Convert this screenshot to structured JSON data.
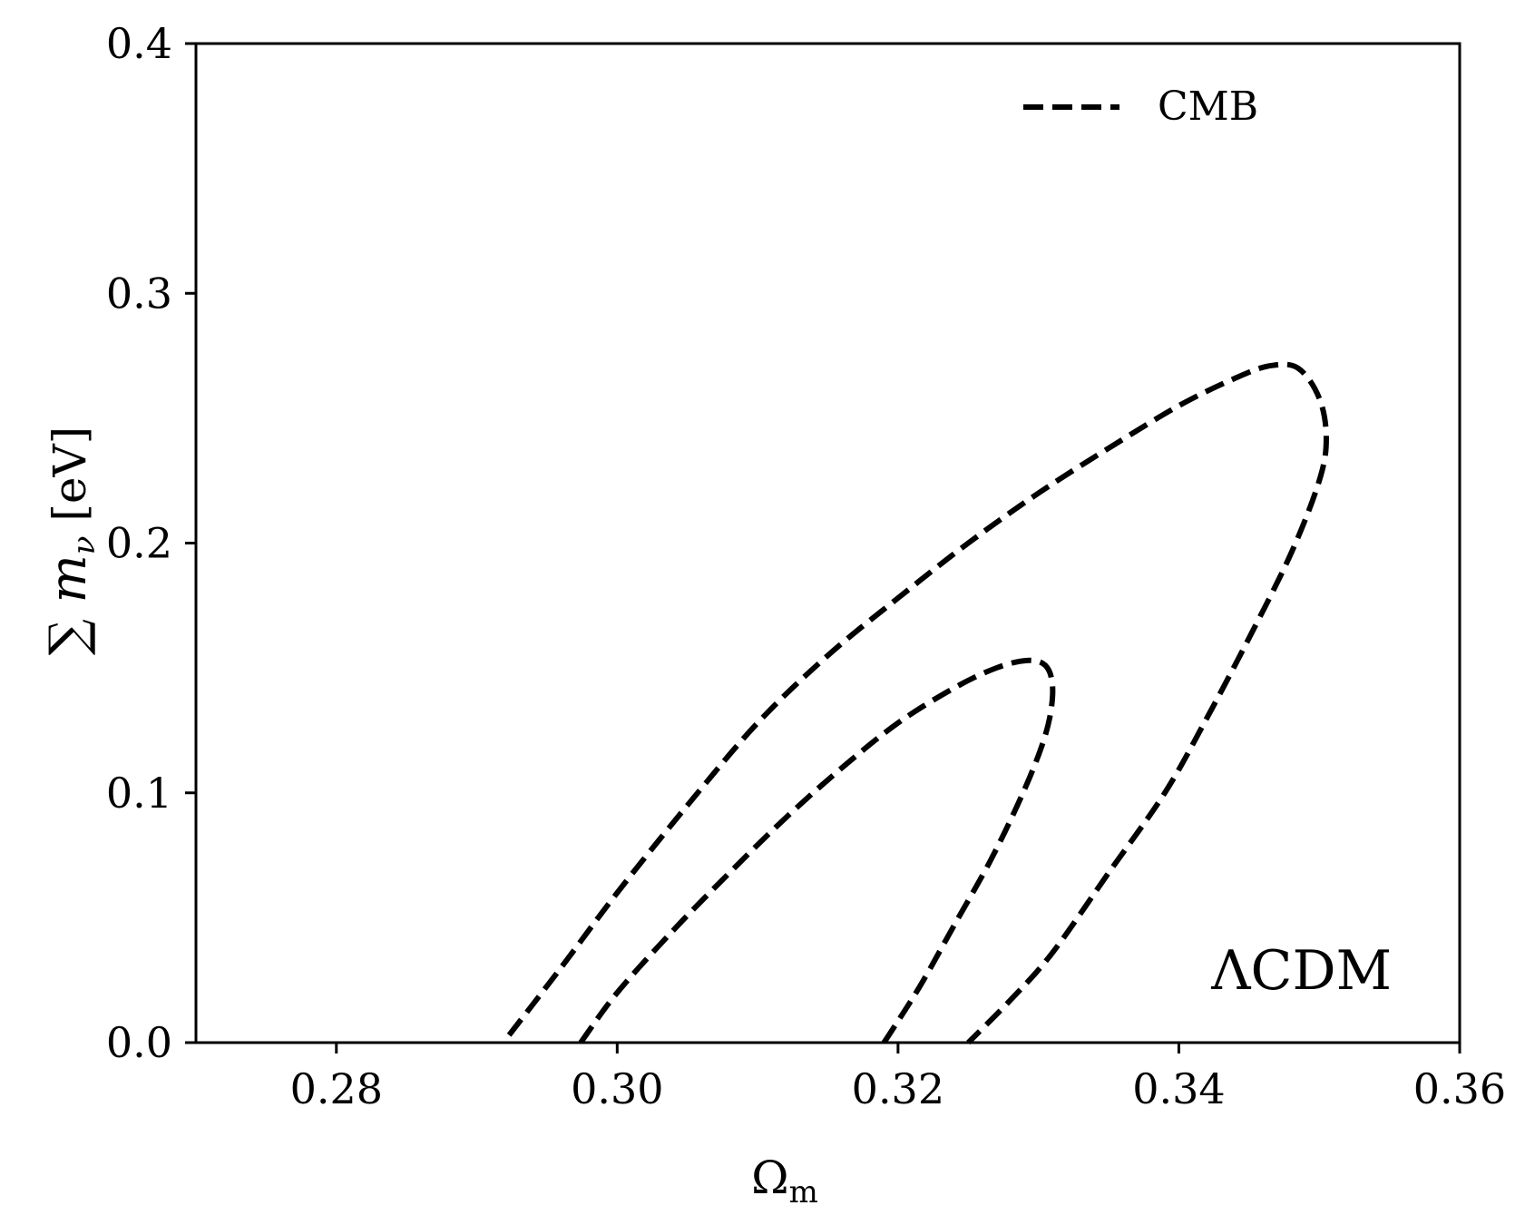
{
  "chart_data": {
    "type": "line",
    "title": "",
    "xlabel": "Ω",
    "xlabel_sub": "m",
    "ylabel": "∑ m",
    "ylabel_sub": "ν",
    "ylabel_unit": "[eV]",
    "xlim": [
      0.27,
      0.36
    ],
    "ylim": [
      0.0,
      0.4
    ],
    "xticks": [
      0.28,
      0.3,
      0.32,
      0.34,
      0.36
    ],
    "xtick_labels": [
      "0.28",
      "0.30",
      "0.32",
      "0.34",
      "0.36"
    ],
    "yticks": [
      0.0,
      0.1,
      0.2,
      0.3,
      0.4
    ],
    "ytick_labels": [
      "0.0",
      "0.1",
      "0.2",
      "0.3",
      "0.4"
    ],
    "grid": false,
    "legend": {
      "placement": "top-right",
      "entries": [
        {
          "label": "CMB",
          "style": "dashed",
          "color": "#000000"
        }
      ]
    },
    "annotation": "ΛCDM",
    "series": [
      {
        "name": "CMB",
        "style": "dashed",
        "color": "#000000",
        "contours": [
          {
            "level": "inner",
            "x": [
              0.2974,
              0.3,
              0.304,
              0.308,
              0.312,
              0.316,
              0.32,
              0.324,
              0.327,
              0.3292,
              0.3305,
              0.331,
              0.3308,
              0.33,
              0.3285,
              0.3265,
              0.324,
              0.3215,
              0.319
            ],
            "y": [
              0.0,
              0.02,
              0.045,
              0.068,
              0.09,
              0.11,
              0.128,
              0.142,
              0.15,
              0.153,
              0.151,
              0.143,
              0.13,
              0.115,
              0.095,
              0.072,
              0.047,
              0.022,
              0.0
            ]
          },
          {
            "level": "outer",
            "x": [
              0.2923,
              0.296,
              0.3,
              0.305,
              0.31,
              0.315,
              0.32,
              0.325,
              0.33,
              0.335,
              0.34,
              0.344,
              0.3465,
              0.3485,
              0.35,
              0.3505,
              0.35,
              0.348,
              0.345,
              0.342,
              0.339,
              0.335,
              0.331,
              0.328,
              0.325
            ],
            "y": [
              0.003,
              0.03,
              0.06,
              0.095,
              0.128,
              0.155,
              0.178,
              0.2,
              0.22,
              0.238,
              0.255,
              0.266,
              0.271,
              0.27,
              0.258,
              0.242,
              0.225,
              0.196,
              0.162,
              0.13,
              0.1,
              0.068,
              0.036,
              0.017,
              0.0
            ]
          }
        ]
      }
    ]
  }
}
